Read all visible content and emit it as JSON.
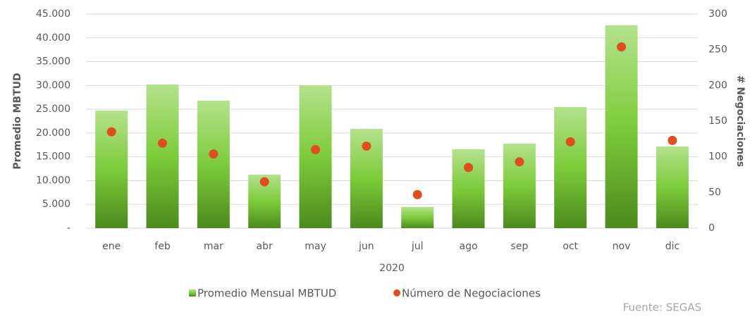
{
  "chart_data": {
    "type": "bar-scatter",
    "categories": [
      "ene",
      "feb",
      "mar",
      "abr",
      "may",
      "jun",
      "jul",
      "ago",
      "sep",
      "oct",
      "nov",
      "dic"
    ],
    "xlabel": "2020",
    "ylabel": "Promedio MBTUD",
    "y2label": "# Negociaciones",
    "series": [
      {
        "name": "Promedio Mensual MBTUD",
        "color": "#6cc22e",
        "type": "bar",
        "values": [
          24700,
          30200,
          26800,
          11250,
          30050,
          20870,
          4440,
          16580,
          17760,
          25460,
          42630,
          17170
        ]
      },
      {
        "name": "Número de Negociaciones",
        "color": "#e04e1f",
        "type": "scatter",
        "axis": "y2",
        "values": [
          135,
          119,
          104,
          65,
          110,
          115,
          47,
          85,
          93,
          121,
          254,
          123
        ]
      }
    ],
    "ylim": [
      0,
      45000
    ],
    "yticks": [
      {
        "value": 0,
        "label": "-"
      },
      {
        "value": 5000,
        "label": "5.000"
      },
      {
        "value": 10000,
        "label": "10.000"
      },
      {
        "value": 15000,
        "label": "15.000"
      },
      {
        "value": 20000,
        "label": "20.000"
      },
      {
        "value": 25000,
        "label": "25.000"
      },
      {
        "value": 30000,
        "label": "30.000"
      },
      {
        "value": 35000,
        "label": "35.000"
      },
      {
        "value": 40000,
        "label": "40.000"
      },
      {
        "value": 45000,
        "label": "45.000"
      }
    ],
    "y2lim": [
      0,
      300
    ],
    "y2ticks": [
      0,
      50,
      100,
      150,
      200,
      250,
      300
    ],
    "grid": true,
    "legend": "bottom",
    "annotation": "Fuente: SEGAS"
  }
}
